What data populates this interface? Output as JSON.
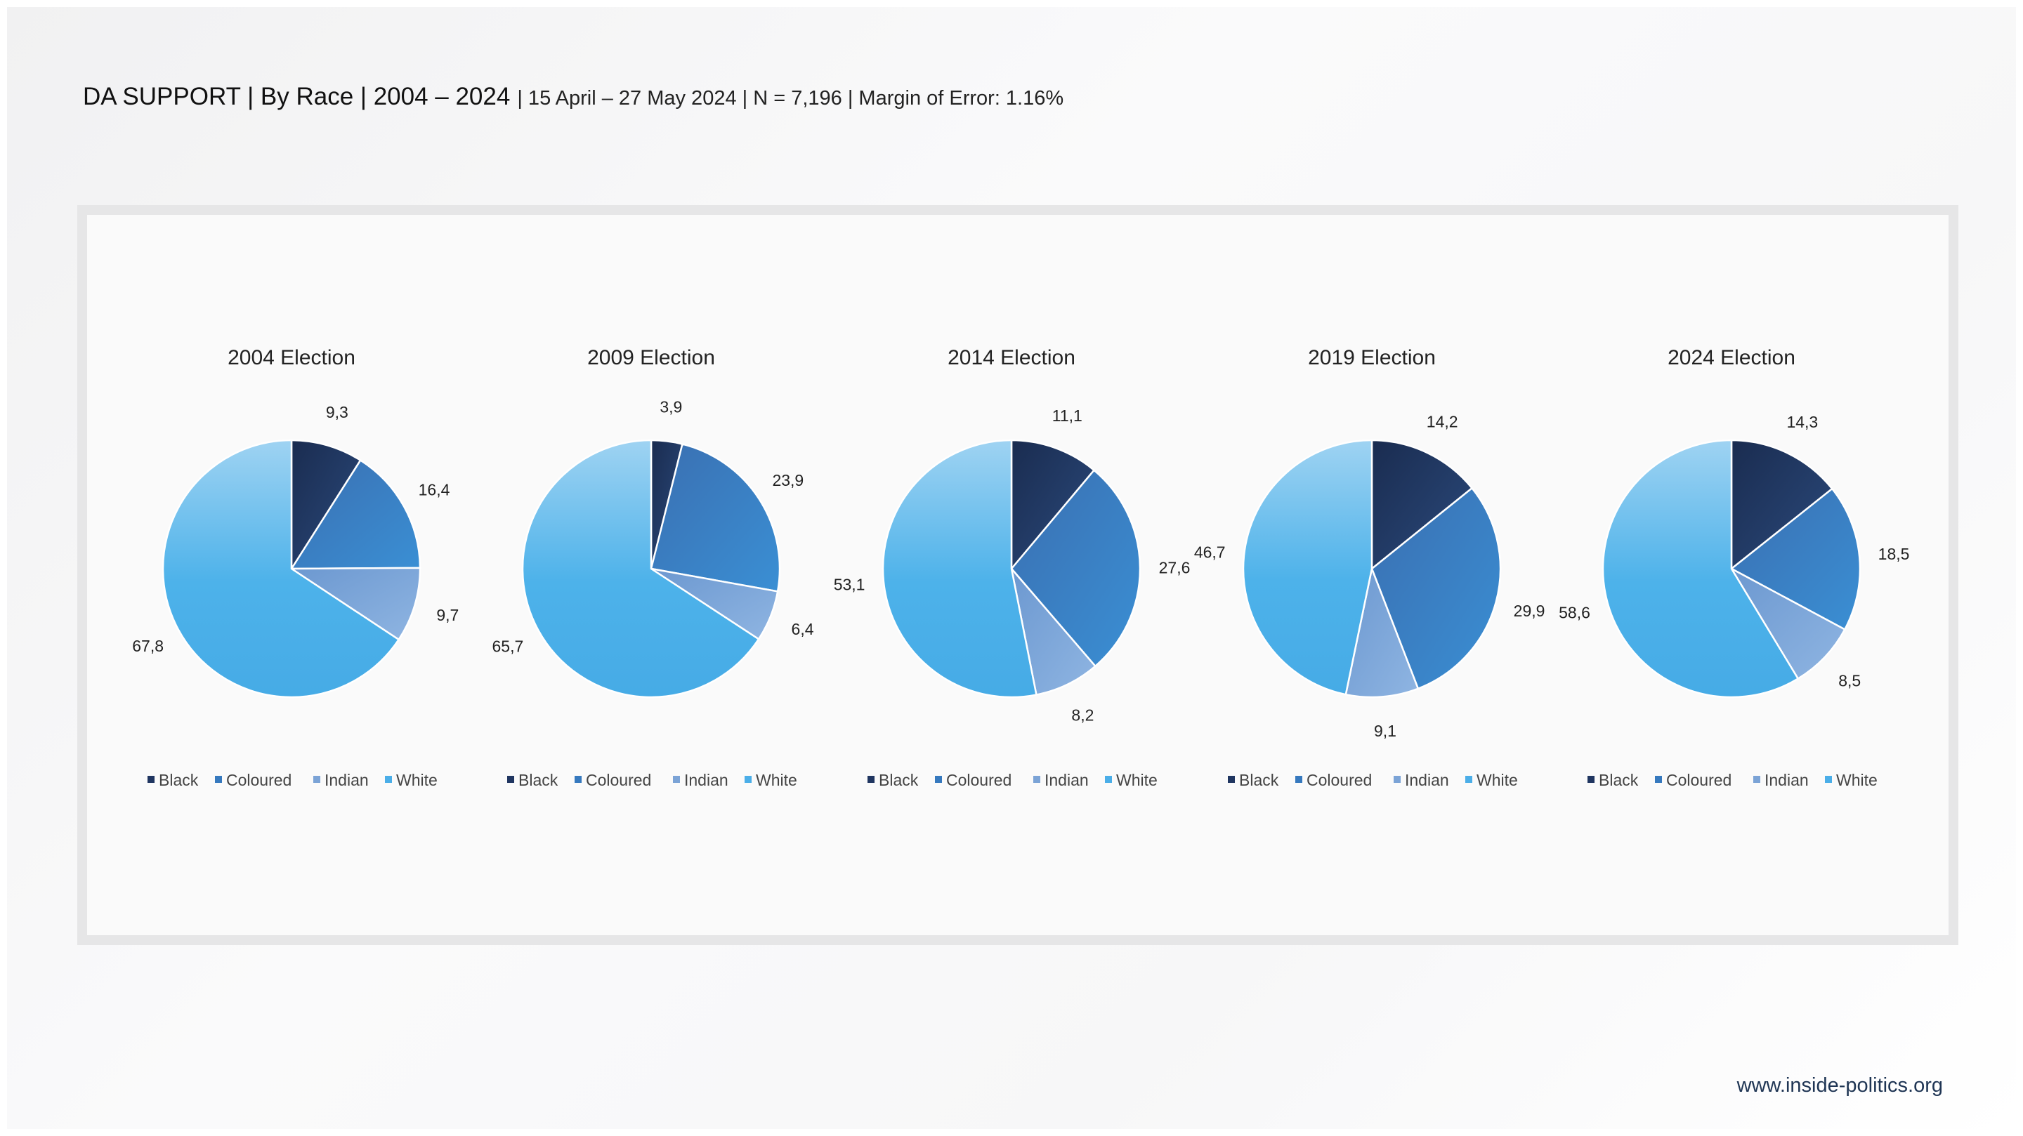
{
  "header": {
    "title_main": "DA SUPPORT | By Race | 2004 – 2024",
    "title_sub": "| 15 April – 27 May 2024 | N = 7,196 | Margin of Error: 1.16%"
  },
  "footer": {
    "url": "www.inside-politics.org"
  },
  "chart_data": [
    {
      "type": "pie",
      "title": "2004 Election",
      "categories": [
        "Black",
        "Coloured",
        "Indian",
        "White"
      ],
      "values": [
        9.3,
        16.4,
        9.7,
        67.8
      ],
      "labels": [
        "9,3",
        "16,4",
        "9,7",
        "67,8"
      ],
      "legend": "bottom"
    },
    {
      "type": "pie",
      "title": "2009 Election",
      "categories": [
        "Black",
        "Coloured",
        "Indian",
        "White"
      ],
      "values": [
        3.9,
        23.9,
        6.4,
        65.7
      ],
      "labels": [
        "3,9",
        "23,9",
        "6,4",
        "65,7"
      ],
      "legend": "bottom"
    },
    {
      "type": "pie",
      "title": "2014 Election",
      "categories": [
        "Black",
        "Coloured",
        "Indian",
        "White"
      ],
      "values": [
        11.1,
        27.6,
        8.2,
        53.1
      ],
      "labels": [
        "11,1",
        "27,6",
        "8,2",
        "53,1"
      ],
      "legend": "bottom"
    },
    {
      "type": "pie",
      "title": "2019 Election",
      "categories": [
        "Black",
        "Coloured",
        "Indian",
        "White"
      ],
      "values": [
        14.2,
        29.9,
        9.1,
        46.7
      ],
      "labels": [
        "14,2",
        "29,9",
        "9,1",
        "46,7"
      ],
      "legend": "bottom"
    },
    {
      "type": "pie",
      "title": "2024 Election",
      "categories": [
        "Black",
        "Coloured",
        "Indian",
        "White"
      ],
      "values": [
        14.3,
        18.5,
        8.5,
        58.6
      ],
      "labels": [
        "14,3",
        "18,5",
        "8,5",
        "58,6"
      ],
      "legend": "bottom"
    }
  ],
  "colors": {
    "Black": "#1f3560",
    "Coloured": "#3679be",
    "Indian": "#7ba3d6",
    "White": "#4baee8"
  }
}
